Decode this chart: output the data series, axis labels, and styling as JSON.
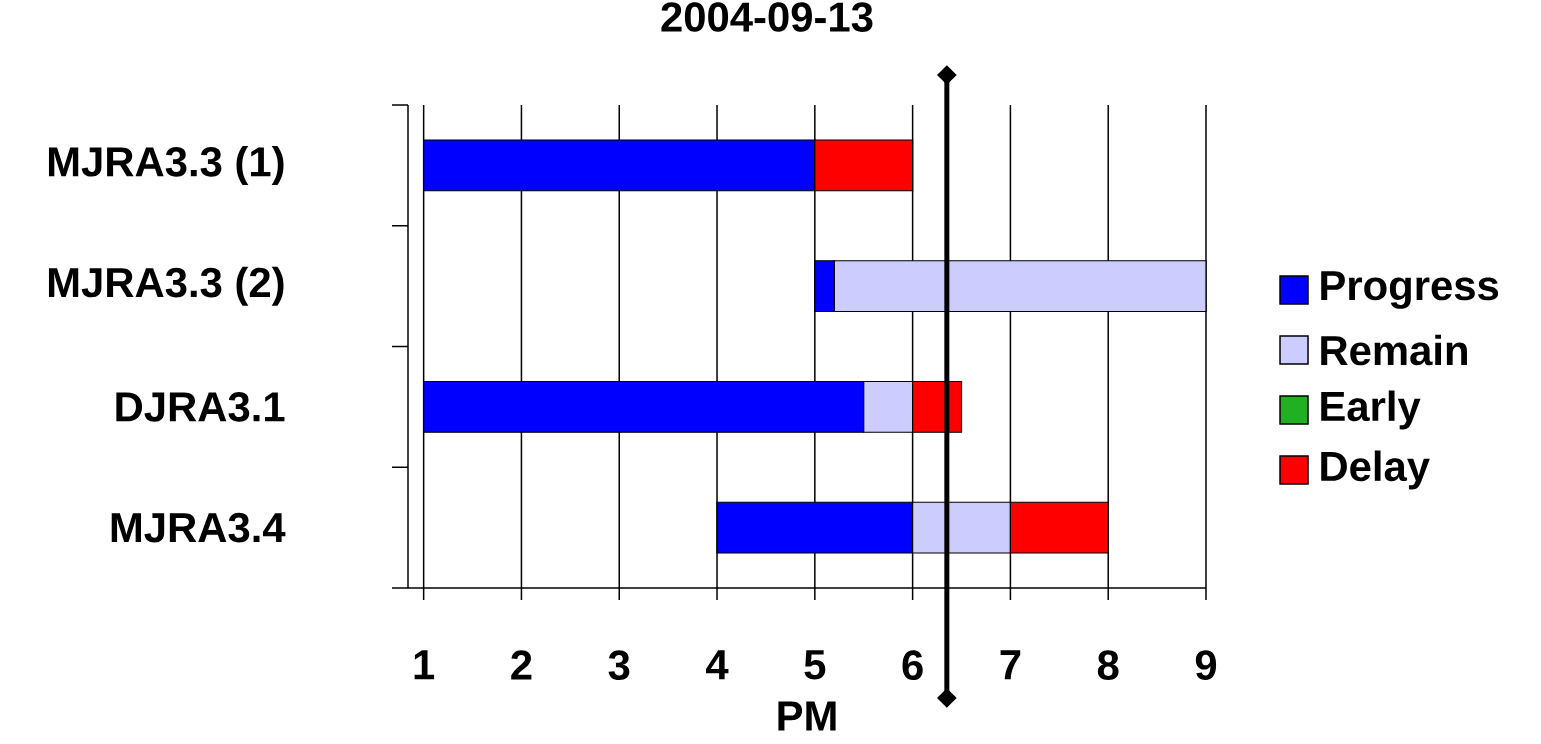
{
  "chart_data": {
    "type": "bar",
    "orientation": "horizontal",
    "title": "2004-09-13",
    "xlabel": "PM",
    "categories": [
      "MJRA3.3 (1)",
      "MJRA3.3 (2)",
      "DJRA3.1",
      "MJRA3.4"
    ],
    "series": [
      {
        "name": "Progress",
        "color": "#0000ff",
        "values": [
          4,
          0.2,
          4.5,
          2
        ],
        "base": [
          1,
          5,
          1,
          4
        ]
      },
      {
        "name": "Remain",
        "color": "#ccccff",
        "values": [
          null,
          3.8,
          0.5,
          1
        ],
        "base": [
          null,
          5.2,
          5.5,
          6
        ]
      },
      {
        "name": "Early",
        "color": "#22b022",
        "values": [
          null,
          null,
          null,
          null
        ],
        "base": [
          null,
          null,
          null,
          null
        ]
      },
      {
        "name": "Delay",
        "color": "#ff0000",
        "values": [
          1,
          null,
          0.5,
          1
        ],
        "base": [
          5,
          null,
          6,
          7
        ]
      }
    ],
    "xlim": [
      0.84,
      9
    ],
    "xticks": [
      1,
      2,
      3,
      4,
      5,
      6,
      7,
      8,
      9
    ],
    "grid": "x",
    "legend": "right",
    "ref_lines": [
      {
        "axis": "x",
        "value": 6.35,
        "color": "#000000"
      }
    ]
  }
}
